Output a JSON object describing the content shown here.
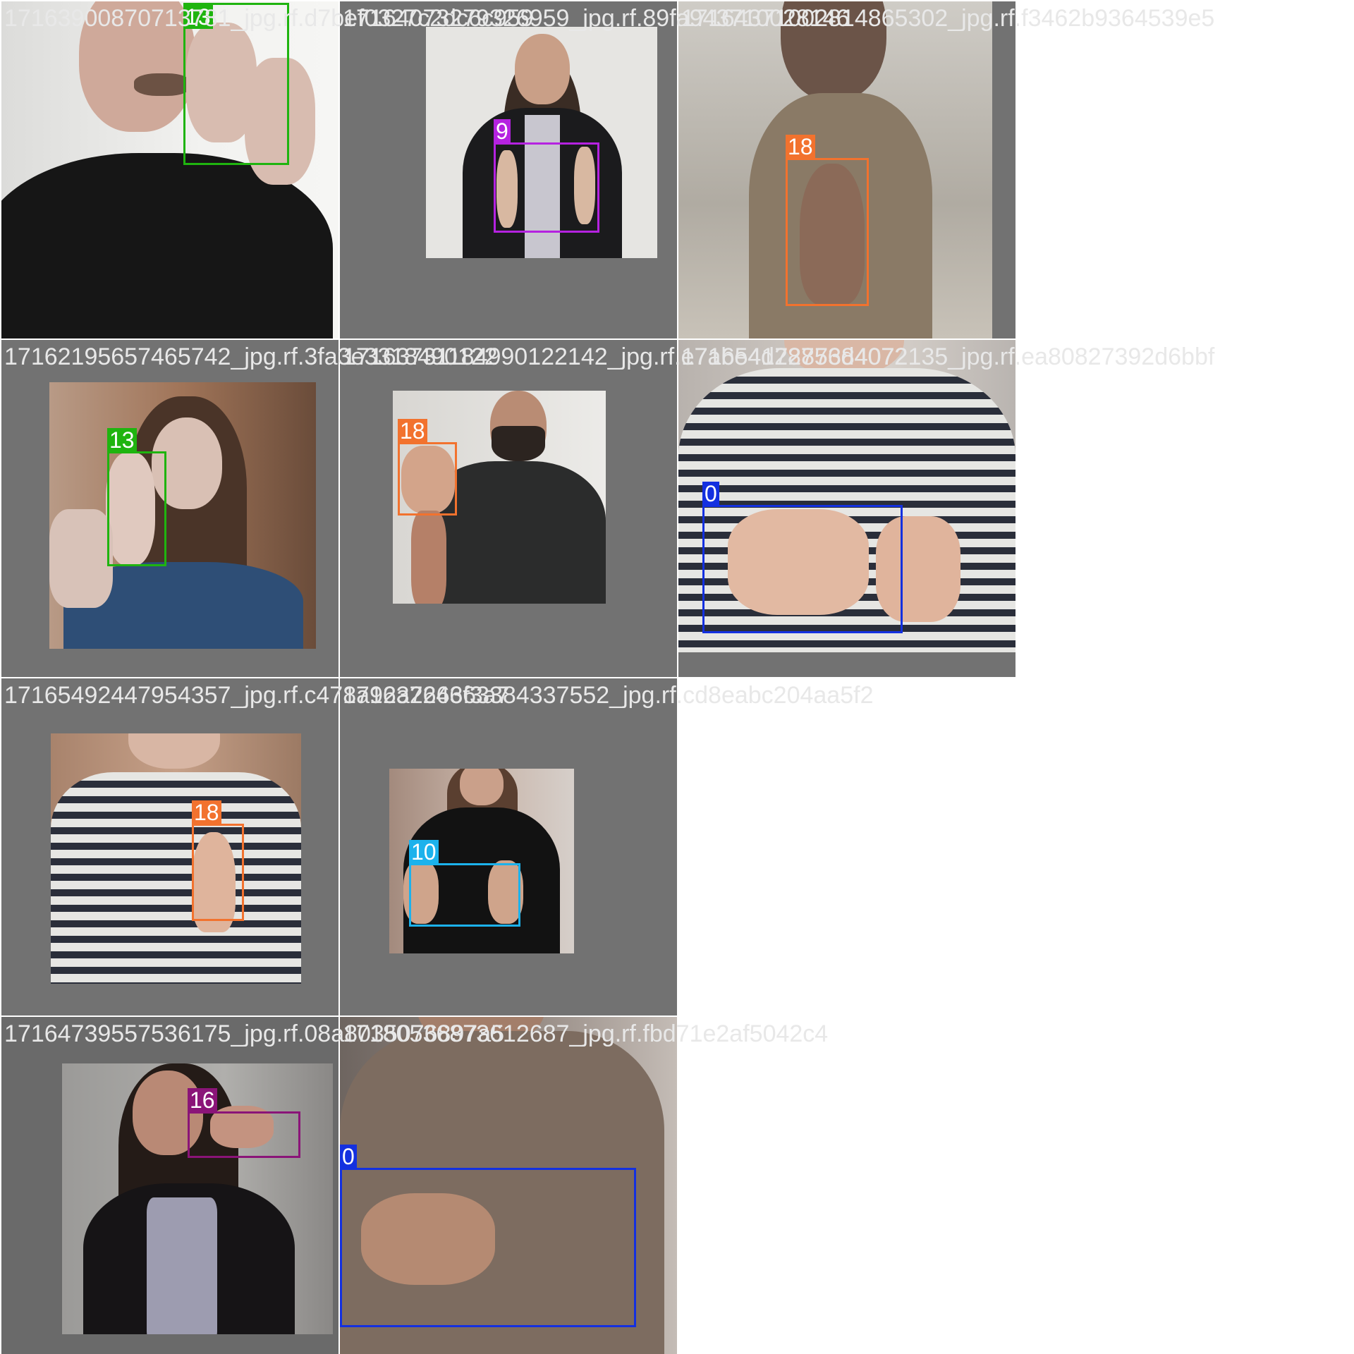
{
  "colors": {
    "class_13": "#1fb40f",
    "class_9": "#b522e0",
    "class_18": "#f2722e",
    "class_0": "#1330e0",
    "class_10": "#1cb2ec",
    "class_16": "#8a1478"
  },
  "tiles": [
    {
      "filename": "17163900870713781_jpg.rf.d7bef0327c2dc6c959",
      "box_class": "13",
      "color_key": "class_13"
    },
    {
      "filename": "17164073279326959_jpg.rf.89fa943710028146",
      "box_class": "9",
      "color_key": "class_9"
    },
    {
      "filename": "17164371002814865302_jpg.rf.f3462b9364539e5",
      "box_class": "18",
      "color_key": "class_18"
    },
    {
      "filename": "17162195657465742_jpg.rf.3fa3e3318490122",
      "box_class": "13",
      "color_key": "class_13"
    },
    {
      "filename": "17163731184990122142_jpg.rf.e7abe4d28756d4072",
      "box_class": "18",
      "color_key": "class_18"
    },
    {
      "filename": "17165417287384072135_jpg.rf.ea80827392d6bbf",
      "box_class": "0",
      "color_key": "class_0"
    },
    {
      "filename": "17165492447954357_jpg.rf.c478a92a2663f3a7",
      "box_class": "18",
      "color_key": "class_18"
    },
    {
      "filename": "17163724663384337552_jpg.rf.cd8eabc204aa5f2",
      "box_class": "10",
      "color_key": "class_10"
    },
    {
      "filename": "17164739557536175_jpg.rf.08a8035076897a5",
      "box_class": "16",
      "color_key": "class_16"
    },
    {
      "filename": "17180536873612687_jpg.rf.fbd71e2af5042c4",
      "box_class": "0",
      "color_key": "class_0"
    }
  ]
}
